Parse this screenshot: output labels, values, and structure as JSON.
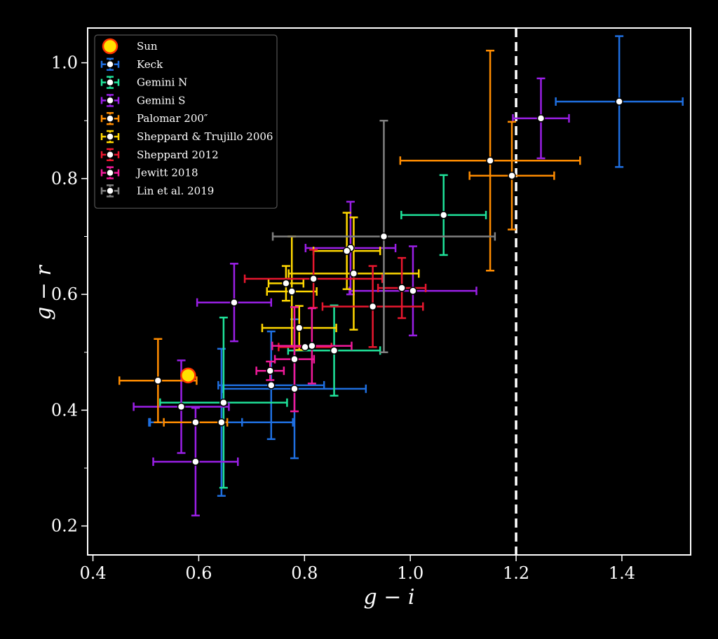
{
  "chart_data": {
    "type": "scatter",
    "title": "",
    "xlabel": "g − i",
    "ylabel": "g − r",
    "xlim": [
      0.39,
      1.53
    ],
    "ylim": [
      0.15,
      1.06
    ],
    "x_ticks": [
      "0.4",
      "0.6",
      "0.8",
      "1.0",
      "1.2",
      "1.4"
    ],
    "y_ticks": [
      "0.2",
      "0.4",
      "0.6",
      "0.8",
      "1.0"
    ],
    "grid": false,
    "legend_position": "upper-left",
    "background": "#000000",
    "reference_line": {
      "x": 1.2,
      "style": "dashed",
      "color": "#ffffff"
    },
    "sun": {
      "name": "Sun",
      "x": 0.58,
      "y": 0.46,
      "color": "#ffe100",
      "edge": "#ff3300"
    },
    "series": [
      {
        "name": "Keck",
        "color": "#1f6fe0",
        "points": [
          {
            "x": 1.395,
            "y": 0.933,
            "xerr": 0.12,
            "yerr": 0.113
          },
          {
            "x": 0.737,
            "y": 0.443,
            "xerr": 0.1,
            "yerr": 0.093
          },
          {
            "x": 0.781,
            "y": 0.437,
            "xerr": 0.135,
            "yerr": 0.12
          },
          {
            "x": 0.643,
            "y": 0.379,
            "xerr": 0.135,
            "yerr": 0.127
          },
          {
            "x": 0.594,
            "y": 0.379,
            "xerr": 0.088,
            "yerr": 0.0
          }
        ]
      },
      {
        "name": "Gemini N",
        "color": "#1fe39a",
        "points": [
          {
            "x": 1.063,
            "y": 0.737,
            "xerr": 0.08,
            "yerr": 0.069
          },
          {
            "x": 0.856,
            "y": 0.503,
            "xerr": 0.087,
            "yerr": 0.078
          },
          {
            "x": 0.647,
            "y": 0.413,
            "xerr": 0.12,
            "yerr": 0.147
          }
        ]
      },
      {
        "name": "Gemini S",
        "color": "#9a1fe6",
        "points": [
          {
            "x": 1.247,
            "y": 0.904,
            "xerr": 0.053,
            "yerr": 0.069
          },
          {
            "x": 0.667,
            "y": 0.586,
            "xerr": 0.07,
            "yerr": 0.067
          },
          {
            "x": 0.887,
            "y": 0.68,
            "xerr": 0.085,
            "yerr": 0.08
          },
          {
            "x": 1.005,
            "y": 0.606,
            "xerr": 0.12,
            "yerr": 0.077
          },
          {
            "x": 0.567,
            "y": 0.406,
            "xerr": 0.09,
            "yerr": 0.08
          },
          {
            "x": 0.594,
            "y": 0.311,
            "xerr": 0.08,
            "yerr": 0.093
          }
        ]
      },
      {
        "name": "Palomar 200″",
        "color": "#ff8c00",
        "points": [
          {
            "x": 1.151,
            "y": 0.831,
            "xerr": 0.17,
            "yerr": 0.19
          },
          {
            "x": 1.192,
            "y": 0.805,
            "xerr": 0.08,
            "yerr": 0.093
          },
          {
            "x": 0.523,
            "y": 0.451,
            "xerr": 0.073,
            "yerr": 0.072
          },
          {
            "x": 0.594,
            "y": 0.379,
            "xerr": 0.06,
            "yerr": 0.0
          }
        ]
      },
      {
        "name": "Sheppard & Trujillo 2006",
        "color": "#ffd700",
        "points": [
          {
            "x": 0.765,
            "y": 0.619,
            "xerr": 0.033,
            "yerr": 0.03
          },
          {
            "x": 0.776,
            "y": 0.605,
            "xerr": 0.047,
            "yerr": 0.095
          },
          {
            "x": 0.88,
            "y": 0.675,
            "xerr": 0.063,
            "yerr": 0.066
          },
          {
            "x": 0.893,
            "y": 0.636,
            "xerr": 0.123,
            "yerr": 0.097
          },
          {
            "x": 0.79,
            "y": 0.542,
            "xerr": 0.07,
            "yerr": 0.038
          }
        ]
      },
      {
        "name": "Sheppard 2012",
        "color": "#e8172f",
        "points": [
          {
            "x": 0.817,
            "y": 0.627,
            "xerr": 0.13,
            "yerr": 0.05
          },
          {
            "x": 0.929,
            "y": 0.579,
            "xerr": 0.095,
            "yerr": 0.07
          },
          {
            "x": 0.984,
            "y": 0.611,
            "xerr": 0.045,
            "yerr": 0.052
          },
          {
            "x": 0.801,
            "y": 0.509,
            "xerr": 0.05,
            "yerr": 0.0
          }
        ]
      },
      {
        "name": "Jewitt 2018",
        "color": "#f01a9a",
        "points": [
          {
            "x": 0.735,
            "y": 0.468,
            "xerr": 0.026,
            "yerr": 0.016
          },
          {
            "x": 0.781,
            "y": 0.488,
            "xerr": 0.037,
            "yerr": 0.09
          },
          {
            "x": 0.814,
            "y": 0.511,
            "xerr": 0.075,
            "yerr": 0.065
          }
        ]
      },
      {
        "name": "Lin et al. 2019",
        "color": "#808080",
        "points": [
          {
            "x": 0.95,
            "y": 0.7,
            "xerr": 0.21,
            "yerr": 0.2
          }
        ]
      }
    ]
  }
}
